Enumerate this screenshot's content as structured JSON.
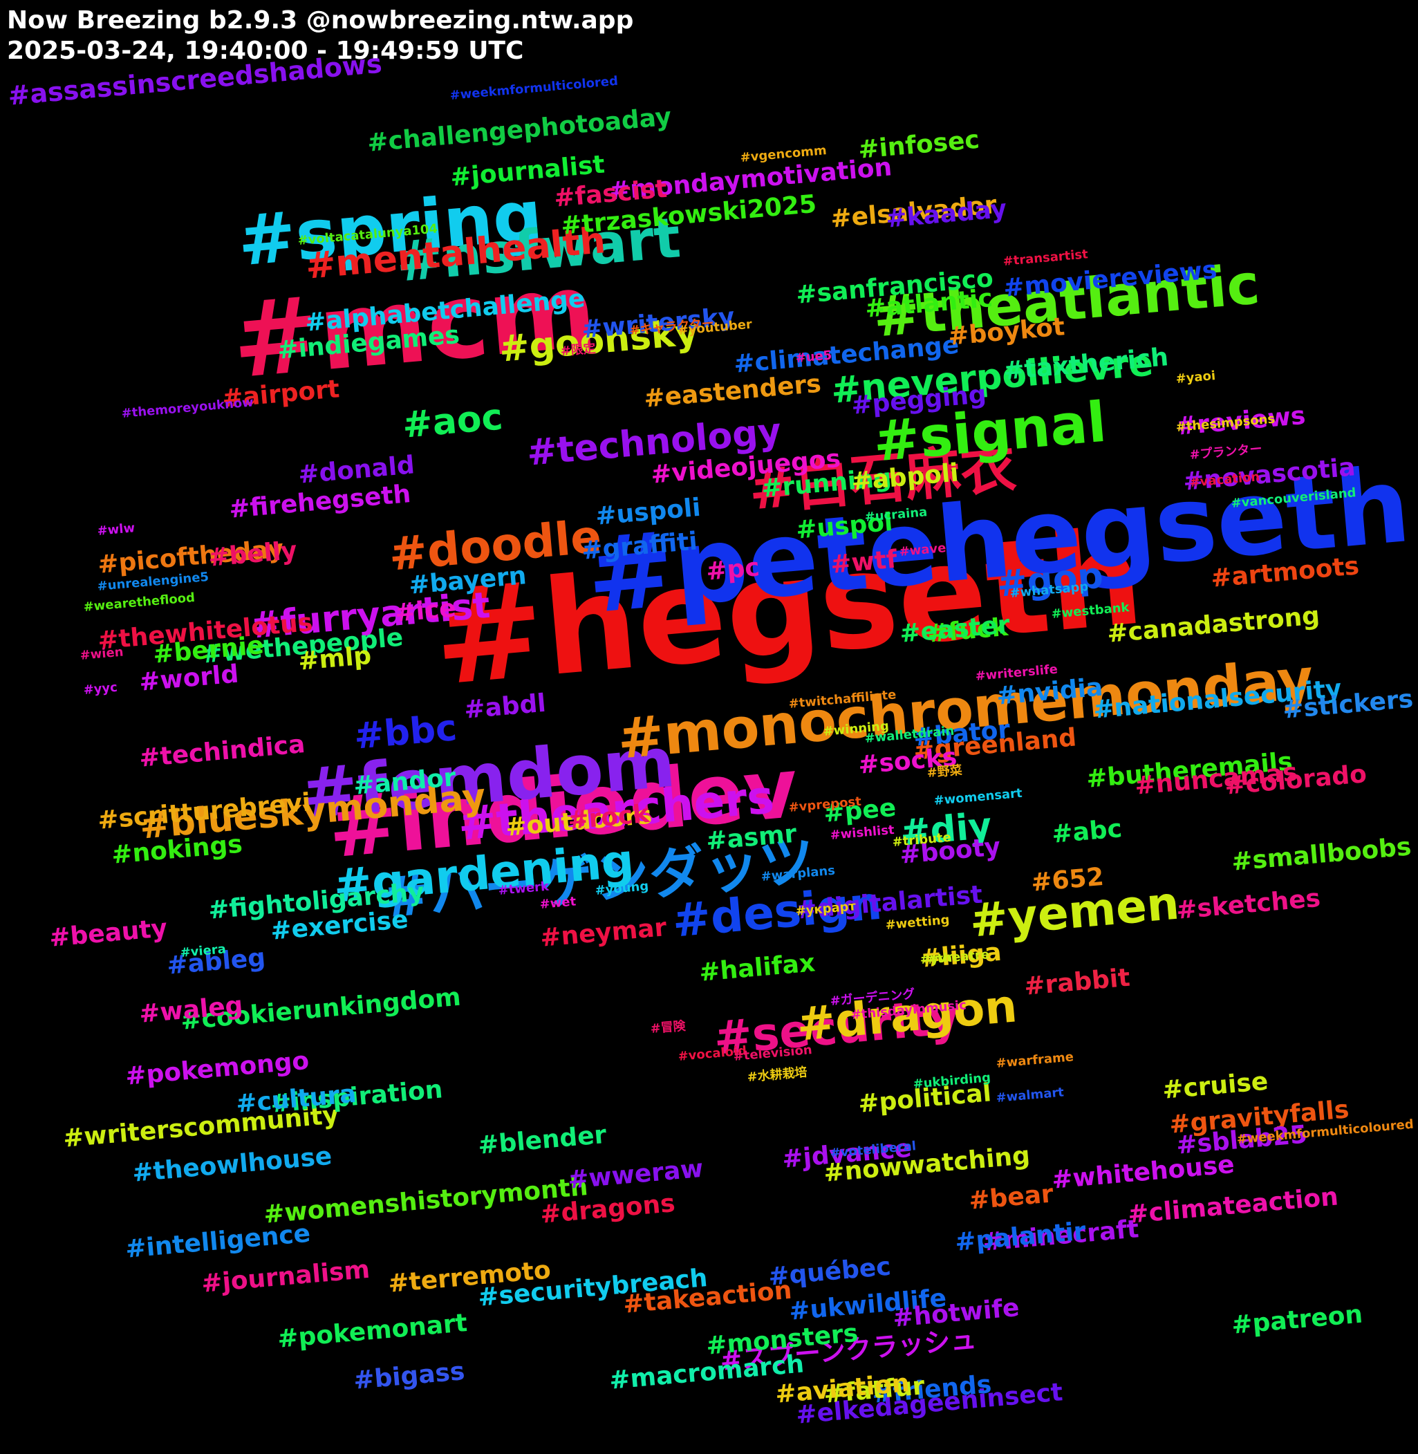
{
  "header": {
    "title": "Now Breezing b2.9.3 @nowbreezing.ntw.app",
    "subtitle": "2025-03-24, 19:40:00 - 19:49:59 UTC"
  },
  "tags": [
    {
      "text": "#hegseth",
      "color": "#ee1111",
      "rank": 1
    },
    {
      "text": "#petehegseth",
      "color": "#1133ee",
      "rank": 1
    },
    {
      "text": "#mcm",
      "color": "#ee1155",
      "rank": 1
    },
    {
      "text": "#indiedev",
      "color": "#ee1199",
      "rank": 1
    },
    {
      "text": "#spring",
      "color": "#11ccee",
      "rank": 2
    },
    {
      "text": "#femdom",
      "color": "#8822ee",
      "rank": 2
    },
    {
      "text": "#monochromemonday",
      "color": "#ee8811",
      "rank": 2
    },
    {
      "text": "#theatlantic",
      "color": "#55ee11",
      "rank": 2
    },
    {
      "text": "#nsfwart",
      "color": "#11ccaa",
      "rank": 2
    },
    {
      "text": "#ハーゲンダッツ",
      "color": "#1188ee",
      "rank": 2
    },
    {
      "text": "#白石麻衣",
      "color": "#ee1144",
      "rank": 2
    },
    {
      "text": "#signal",
      "color": "#33ee11",
      "rank": 2
    },
    {
      "text": "#security",
      "color": "#ee1188",
      "rank": 3
    },
    {
      "text": "#gardening",
      "color": "#11ccee",
      "rank": 3
    },
    {
      "text": "#dragon",
      "color": "#eecc11",
      "rank": 3
    },
    {
      "text": "#yemen",
      "color": "#ccee11",
      "rank": 3
    },
    {
      "text": "#doodle",
      "color": "#ee5511",
      "rank": 3
    },
    {
      "text": "#thearchers",
      "color": "#cc11ee",
      "rank": 3
    },
    {
      "text": "#design",
      "color": "#1144ee",
      "rank": 3
    },
    {
      "text": "#blueskymonday",
      "color": "#ee9911",
      "rank": 4
    },
    {
      "text": "#technology",
      "color": "#9911ee",
      "rank": 4
    },
    {
      "text": "#mentalhealth",
      "color": "#ee2222",
      "rank": 4
    },
    {
      "text": "#goonsky",
      "color": "#ccee11",
      "rank": 4
    },
    {
      "text": "#furryartist",
      "color": "#cc11ee",
      "rank": 4
    },
    {
      "text": "#neverpoilievre",
      "color": "#11ee55",
      "rank": 4
    },
    {
      "text": "#gop",
      "color": "#1155ee",
      "rank": 4
    },
    {
      "text": "#bbc",
      "color": "#2222ee",
      "rank": 4
    },
    {
      "text": "#aoc",
      "color": "#11ee55",
      "rank": 4
    },
    {
      "text": "#diy",
      "color": "#11ee99",
      "rank": 4
    },
    {
      "text": "#スプーンクラッシュ",
      "color": "#cc11ee",
      "rank": 5
    },
    {
      "text": "#assassinscreedshadows",
      "color": "#8811ee",
      "rank": 5
    },
    {
      "text": "#challengephotoaday",
      "color": "#11cc44",
      "rank": 5
    },
    {
      "text": "#mondaymotivation",
      "color": "#cc11ee",
      "rank": 5
    },
    {
      "text": "#journalist",
      "color": "#11ee33",
      "rank": 5
    },
    {
      "text": "#writerscommunity",
      "color": "#ccee11",
      "rank": 5
    },
    {
      "text": "#elkedageeninsect",
      "color": "#6611ee",
      "rank": 5
    },
    {
      "text": "#trzaskowski2025",
      "color": "#33ee11",
      "rank": 5
    },
    {
      "text": "#alphabetchallenge",
      "color": "#11ccee",
      "rank": 5
    },
    {
      "text": "#elsalvador",
      "color": "#eeaa11",
      "rank": 5
    },
    {
      "text": "#moviereviews",
      "color": "#1144ee",
      "rank": 5
    },
    {
      "text": "#sanfrancisco",
      "color": "#11ee55",
      "rank": 5
    },
    {
      "text": "#taxtherich",
      "color": "#11ee77",
      "rank": 5
    },
    {
      "text": "#smallboobs",
      "color": "#55ee11",
      "rank": 5
    },
    {
      "text": "#nationalsecurity",
      "color": "#11aaee",
      "rank": 5
    },
    {
      "text": "#womenshistorymonth",
      "color": "#55ee11",
      "rank": 5
    },
    {
      "text": "#cookierunkingdom",
      "color": "#11ee55",
      "rank": 5
    },
    {
      "text": "#fightoligarchy",
      "color": "#11ee99",
      "rank": 5
    },
    {
      "text": "#climatechange",
      "color": "#1166ee",
      "rank": 5
    },
    {
      "text": "#digitalartist",
      "color": "#6611ee",
      "rank": 5
    },
    {
      "text": "#butheremails",
      "color": "#33ee11",
      "rank": 5
    },
    {
      "text": "#indiegames",
      "color": "#11ee77",
      "rank": 5
    },
    {
      "text": "#securitybreach",
      "color": "#11ccee",
      "rank": 5
    },
    {
      "text": "#thewhitelotus",
      "color": "#ee1144",
      "rank": 5
    },
    {
      "text": "#canadastrong",
      "color": "#ccee11",
      "rank": 5
    },
    {
      "text": "#intelligence",
      "color": "#1188ee",
      "rank": 5
    },
    {
      "text": "#scritturebrevi",
      "color": "#eeaa11",
      "rank": 5
    },
    {
      "text": "#climateaction",
      "color": "#ee11aa",
      "rank": 5
    },
    {
      "text": "#theowlhouse",
      "color": "#11aaee",
      "rank": 5
    },
    {
      "text": "#macromarch",
      "color": "#11eeaa",
      "rank": 5
    },
    {
      "text": "#writersky",
      "color": "#2255ee",
      "rank": 5
    },
    {
      "text": "#eastenders",
      "color": "#ee9911",
      "rank": 5
    },
    {
      "text": "#novascotia",
      "color": "#9911ee",
      "rank": 5
    },
    {
      "text": "#nowwatching",
      "color": "#ccee11",
      "rank": 5
    },
    {
      "text": "#videojuegos",
      "color": "#ee11cc",
      "rank": 5
    },
    {
      "text": "#firehegseth",
      "color": "#cc11ee",
      "rank": 5
    },
    {
      "text": "#picoftheday",
      "color": "#ee7711",
      "rank": 5
    },
    {
      "text": "#techindica",
      "color": "#ee11aa",
      "rank": 5
    },
    {
      "text": "#wethepeople",
      "color": "#11ee77",
      "rank": 5
    },
    {
      "text": "#nuncamas",
      "color": "#ee1166",
      "rank": 5
    },
    {
      "text": "#gravityfalls",
      "color": "#ee5511",
      "rank": 5
    },
    {
      "text": "#minecraft",
      "color": "#aa11ee",
      "rank": 5
    },
    {
      "text": "#whitehouse",
      "color": "#cc11ee",
      "rank": 5
    },
    {
      "text": "#inspiration",
      "color": "#11ee77",
      "rank": 5
    },
    {
      "text": "#pokemonart",
      "color": "#11ee55",
      "rank": 5
    },
    {
      "text": "#ukwildlife",
      "color": "#1166ee",
      "rank": 5
    },
    {
      "text": "#journalism",
      "color": "#ee1188",
      "rank": 5
    },
    {
      "text": "#terremoto",
      "color": "#eeaa11",
      "rank": 5
    },
    {
      "text": "#takeaction",
      "color": "#ee5511",
      "rank": 5
    },
    {
      "text": "#pokemongo",
      "color": "#cc11ee",
      "rank": 5
    },
    {
      "text": "#monsters",
      "color": "#11ee55",
      "rank": 5
    },
    {
      "text": "#greenland",
      "color": "#ee5511",
      "rank": 5
    },
    {
      "text": "#stickers",
      "color": "#2288ee",
      "rank": 5
    },
    {
      "text": "#sketches",
      "color": "#ee1188",
      "rank": 5
    },
    {
      "text": "#artmoots",
      "color": "#ee4411",
      "rank": 5
    },
    {
      "text": "#atlantic",
      "color": "#33ee11",
      "rank": 5
    },
    {
      "text": "#kaaday",
      "color": "#6611ee",
      "rank": 5
    },
    {
      "text": "#fascist",
      "color": "#ee1166",
      "rank": 5
    },
    {
      "text": "#infosec",
      "color": "#55ee11",
      "rank": 5
    },
    {
      "text": "#pegging",
      "color": "#6611ee",
      "rank": 5
    },
    {
      "text": "#running",
      "color": "#11ee55",
      "rank": 5
    },
    {
      "text": "#reviews",
      "color": "#cc11ee",
      "rank": 5
    },
    {
      "text": "#graffiti",
      "color": "#1166ee",
      "rank": 5
    },
    {
      "text": "#bayern",
      "color": "#11aaee",
      "rank": 5
    },
    {
      "text": "#donald",
      "color": "#8811ee",
      "rank": 5
    },
    {
      "text": "#uspol",
      "color": "#11ee33",
      "rank": 5
    },
    {
      "text": "#uspoli",
      "color": "#1188ee",
      "rank": 5
    },
    {
      "text": "#abpoli",
      "color": "#ccee11",
      "rank": 5
    },
    {
      "text": "#airport",
      "color": "#ee2222",
      "rank": 5
    },
    {
      "text": "#bernie",
      "color": "#33ee11",
      "rank": 5
    },
    {
      "text": "#boykot",
      "color": "#ee8811",
      "rank": 5
    },
    {
      "text": "#belly",
      "color": "#ee1166",
      "rank": 5
    },
    {
      "text": "#world",
      "color": "#cc11ee",
      "rank": 5
    },
    {
      "text": "#fuck",
      "color": "#33ee11",
      "rank": 5
    },
    {
      "text": "#mlp",
      "color": "#ccee11",
      "rank": 5
    },
    {
      "text": "#wtf",
      "color": "#ee1166",
      "rank": 5
    },
    {
      "text": "#easter",
      "color": "#11ee55",
      "rank": 5
    },
    {
      "text": "#pc",
      "color": "#ee11aa",
      "rank": 5
    },
    {
      "text": "#ice",
      "color": "#ee11cc",
      "rank": 5
    },
    {
      "text": "#abdl",
      "color": "#9911ee",
      "rank": 5
    },
    {
      "text": "#bator",
      "color": "#1166ee",
      "rank": 5
    },
    {
      "text": "#nvidia",
      "color": "#1188ee",
      "rank": 5
    },
    {
      "text": "#andor",
      "color": "#11eeaa",
      "rank": 5
    },
    {
      "text": "#socks",
      "color": "#ee11cc",
      "rank": 5
    },
    {
      "text": "#pee",
      "color": "#11ee55",
      "rank": 5
    },
    {
      "text": "#652",
      "color": "#ee8811",
      "rank": 5
    },
    {
      "text": "#colorado",
      "color": "#ee1166",
      "rank": 5
    },
    {
      "text": "#nokings",
      "color": "#33ee11",
      "rank": 5
    },
    {
      "text": "#outdoors",
      "color": "#eecc11",
      "rank": 5
    },
    {
      "text": "#asmr",
      "color": "#11ee77",
      "rank": 5
    },
    {
      "text": "#abc",
      "color": "#11ee55",
      "rank": 5
    },
    {
      "text": "#rock",
      "color": "#ee1166",
      "rank": 5
    },
    {
      "text": "#booty",
      "color": "#aa11ee",
      "rank": 5
    },
    {
      "text": "#beauty",
      "color": "#ee11aa",
      "rank": 5
    },
    {
      "text": "#exercise",
      "color": "#11ccee",
      "rank": 5
    },
    {
      "text": "#neymar",
      "color": "#ee1144",
      "rank": 5
    },
    {
      "text": "#liiga",
      "color": "#eecc11",
      "rank": 5
    },
    {
      "text": "#halifax",
      "color": "#33ee11",
      "rank": 5
    },
    {
      "text": "#ableg",
      "color": "#2255ee",
      "rank": 5
    },
    {
      "text": "#waleg",
      "color": "#ee11aa",
      "rank": 5
    },
    {
      "text": "#rabbit",
      "color": "#ee2244",
      "rank": 5
    },
    {
      "text": "#cruise",
      "color": "#ccee11",
      "rank": 5
    },
    {
      "text": "#cultura",
      "color": "#11aaee",
      "rank": 5
    },
    {
      "text": "#bear",
      "color": "#ee5511",
      "rank": 5
    },
    {
      "text": "#blender",
      "color": "#11ee77",
      "rank": 5
    },
    {
      "text": "#political",
      "color": "#ccee11",
      "rank": 5
    },
    {
      "text": "#wweraw",
      "color": "#8811ee",
      "rank": 5
    },
    {
      "text": "#jdvance",
      "color": "#aa11ee",
      "rank": 5
    },
    {
      "text": "#sblab25",
      "color": "#aa11ee",
      "rank": 5
    },
    {
      "text": "#dragons",
      "color": "#ee1144",
      "rank": 5
    },
    {
      "text": "#palantir",
      "color": "#1166ee",
      "rank": 5
    },
    {
      "text": "#patreon",
      "color": "#11ee55",
      "rank": 5
    },
    {
      "text": "#friends",
      "color": "#1166ee",
      "rank": 5
    },
    {
      "text": "#québec",
      "color": "#2255ee",
      "rank": 5
    },
    {
      "text": "#hotwife",
      "color": "#aa11ee",
      "rank": 5
    },
    {
      "text": "#bigass",
      "color": "#3355ee",
      "rank": 5
    },
    {
      "text": "#fatfur",
      "color": "#ccee11",
      "rank": 5
    },
    {
      "text": "#aviation",
      "color": "#eecc11",
      "rank": 5
    },
    {
      "text": "#weekmformulticolored",
      "color": "#1133ee",
      "rank": 6
    },
    {
      "text": "#vgencomm",
      "color": "#eeaa11",
      "rank": 6
    },
    {
      "text": "#voltacatalunya104",
      "color": "#55ee11",
      "rank": 6
    },
    {
      "text": "#transartist",
      "color": "#ee1144",
      "rank": 6
    },
    {
      "text": "#キャラクター",
      "color": "#ee5511",
      "rank": 6
    },
    {
      "text": "#限定",
      "color": "#ee1166",
      "rank": 6
    },
    {
      "text": "#youtuber",
      "color": "#eeaa11",
      "rank": 6
    },
    {
      "text": "#ue5",
      "color": "#ee11aa",
      "rank": 6
    },
    {
      "text": "#yaoi",
      "color": "#eecc11",
      "rank": 6
    },
    {
      "text": "#themoreyouknow",
      "color": "#9911ee",
      "rank": 6
    },
    {
      "text": "#thesimpsons",
      "color": "#eecc11",
      "rank": 6
    },
    {
      "text": "#プランター",
      "color": "#ee11aa",
      "rank": 6
    },
    {
      "text": "#vacation",
      "color": "#ee1144",
      "rank": 6
    },
    {
      "text": "#vancouverisland",
      "color": "#11ee77",
      "rank": 6
    },
    {
      "text": "#ucraina",
      "color": "#11ee77",
      "rank": 6
    },
    {
      "text": "#wlw",
      "color": "#cc11ee",
      "rank": 6
    },
    {
      "text": "#wave",
      "color": "#ee1188",
      "rank": 6
    },
    {
      "text": "#unrealengine5",
      "color": "#1188ee",
      "rank": 6
    },
    {
      "text": "#whatsapp",
      "color": "#11aaee",
      "rank": 6
    },
    {
      "text": "#westbank",
      "color": "#11ee55",
      "rank": 6
    },
    {
      "text": "#wearetheflood",
      "color": "#55ee11",
      "rank": 6
    },
    {
      "text": "#wien",
      "color": "#ee1188",
      "rank": 6
    },
    {
      "text": "#yyc",
      "color": "#cc11ee",
      "rank": 6
    },
    {
      "text": "#writerslife",
      "color": "#ee11aa",
      "rank": 6
    },
    {
      "text": "#twitchaffiliate",
      "color": "#ee8811",
      "rank": 6
    },
    {
      "text": "#winning",
      "color": "#ccee11",
      "rank": 6
    },
    {
      "text": "#walletdrain",
      "color": "#11ee77",
      "rank": 6
    },
    {
      "text": "#野菜",
      "color": "#eeaa11",
      "rank": 6
    },
    {
      "text": "#womensart",
      "color": "#11ccee",
      "rank": 6
    },
    {
      "text": "#vprepost",
      "color": "#ee5511",
      "rank": 6
    },
    {
      "text": "#wishlist",
      "color": "#ee11cc",
      "rank": 6
    },
    {
      "text": "#tribute",
      "color": "#ccee11",
      "rank": 6
    },
    {
      "text": "#twerk",
      "color": "#aa11ee",
      "rank": 6
    },
    {
      "text": "#warplans",
      "color": "#1188ee",
      "rank": 6
    },
    {
      "text": "#украрт",
      "color": "#eecc11",
      "rank": 6
    },
    {
      "text": "#young",
      "color": "#11ccee",
      "rank": 6
    },
    {
      "text": "#wet",
      "color": "#ee11cc",
      "rank": 6
    },
    {
      "text": "#wetting",
      "color": "#eecc11",
      "rank": 6
    },
    {
      "text": "#yvr",
      "color": "#ccee11",
      "rank": 6
    },
    {
      "text": "#viera",
      "color": "#11eeaa",
      "rank": 6
    },
    {
      "text": "#thisdayinmusic",
      "color": "#ee11aa",
      "rank": 6
    },
    {
      "text": "#vocaloid",
      "color": "#ee1144",
      "rank": 6
    },
    {
      "text": "#冒険",
      "color": "#ee1166",
      "rank": 6
    },
    {
      "text": "#warframe",
      "color": "#ee8811",
      "rank": 6
    },
    {
      "text": "#theatre",
      "color": "#ccee11",
      "rank": 6
    },
    {
      "text": "#ガーデニング",
      "color": "#cc11ee",
      "rank": 6
    },
    {
      "text": "#walmart",
      "color": "#2255ee",
      "rank": 6
    },
    {
      "text": "#television",
      "color": "#ee1166",
      "rank": 6
    },
    {
      "text": "#ukbirding",
      "color": "#11ee77",
      "rank": 6
    },
    {
      "text": "#weekmformulticoloured",
      "color": "#ee8811",
      "rank": 6
    },
    {
      "text": "#水耕栽培",
      "color": "#eecc11",
      "rank": 6
    },
    {
      "text": "#voteliberal",
      "color": "#2255ee",
      "rank": 6
    }
  ]
}
